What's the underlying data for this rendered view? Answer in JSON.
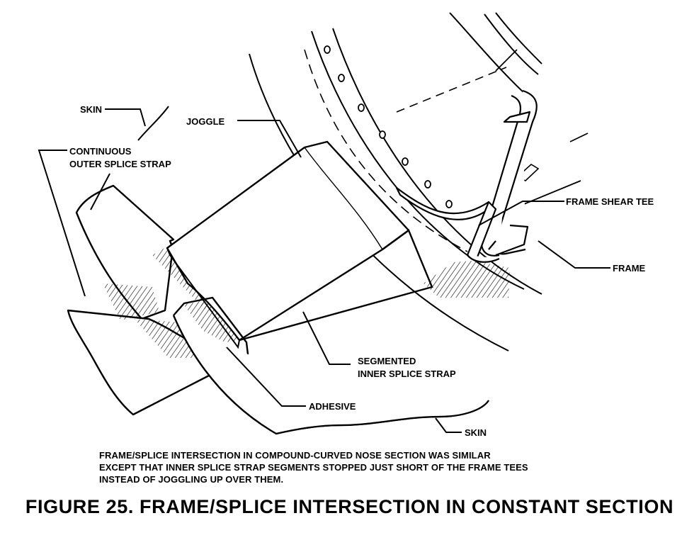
{
  "labels": {
    "skin_top": "SKIN",
    "joggle": "JOGGLE",
    "continuous_outer_line1": "CONTINUOUS",
    "continuous_outer_line2": "OUTER SPLICE STRAP",
    "frame_shear_tee": "FRAME SHEAR TEE",
    "frame": "FRAME",
    "segmented_line1": "SEGMENTED",
    "segmented_line2": "INNER SPLICE STRAP",
    "adhesive": "ADHESIVE",
    "skin_bottom": "SKIN"
  },
  "note": {
    "line1": "FRAME/SPLICE INTERSECTION IN COMPOUND-CURVED NOSE SECTION WAS SIMILAR",
    "line2": "EXCEPT THAT INNER SPLICE STRAP SEGMENTS STOPPED JUST SHORT OF THE FRAME TEES",
    "line3": "INSTEAD OF JOGGLING UP OVER THEM."
  },
  "title": "FIGURE 25.  FRAME/SPLICE INTERSECTION IN CONSTANT SECTION"
}
